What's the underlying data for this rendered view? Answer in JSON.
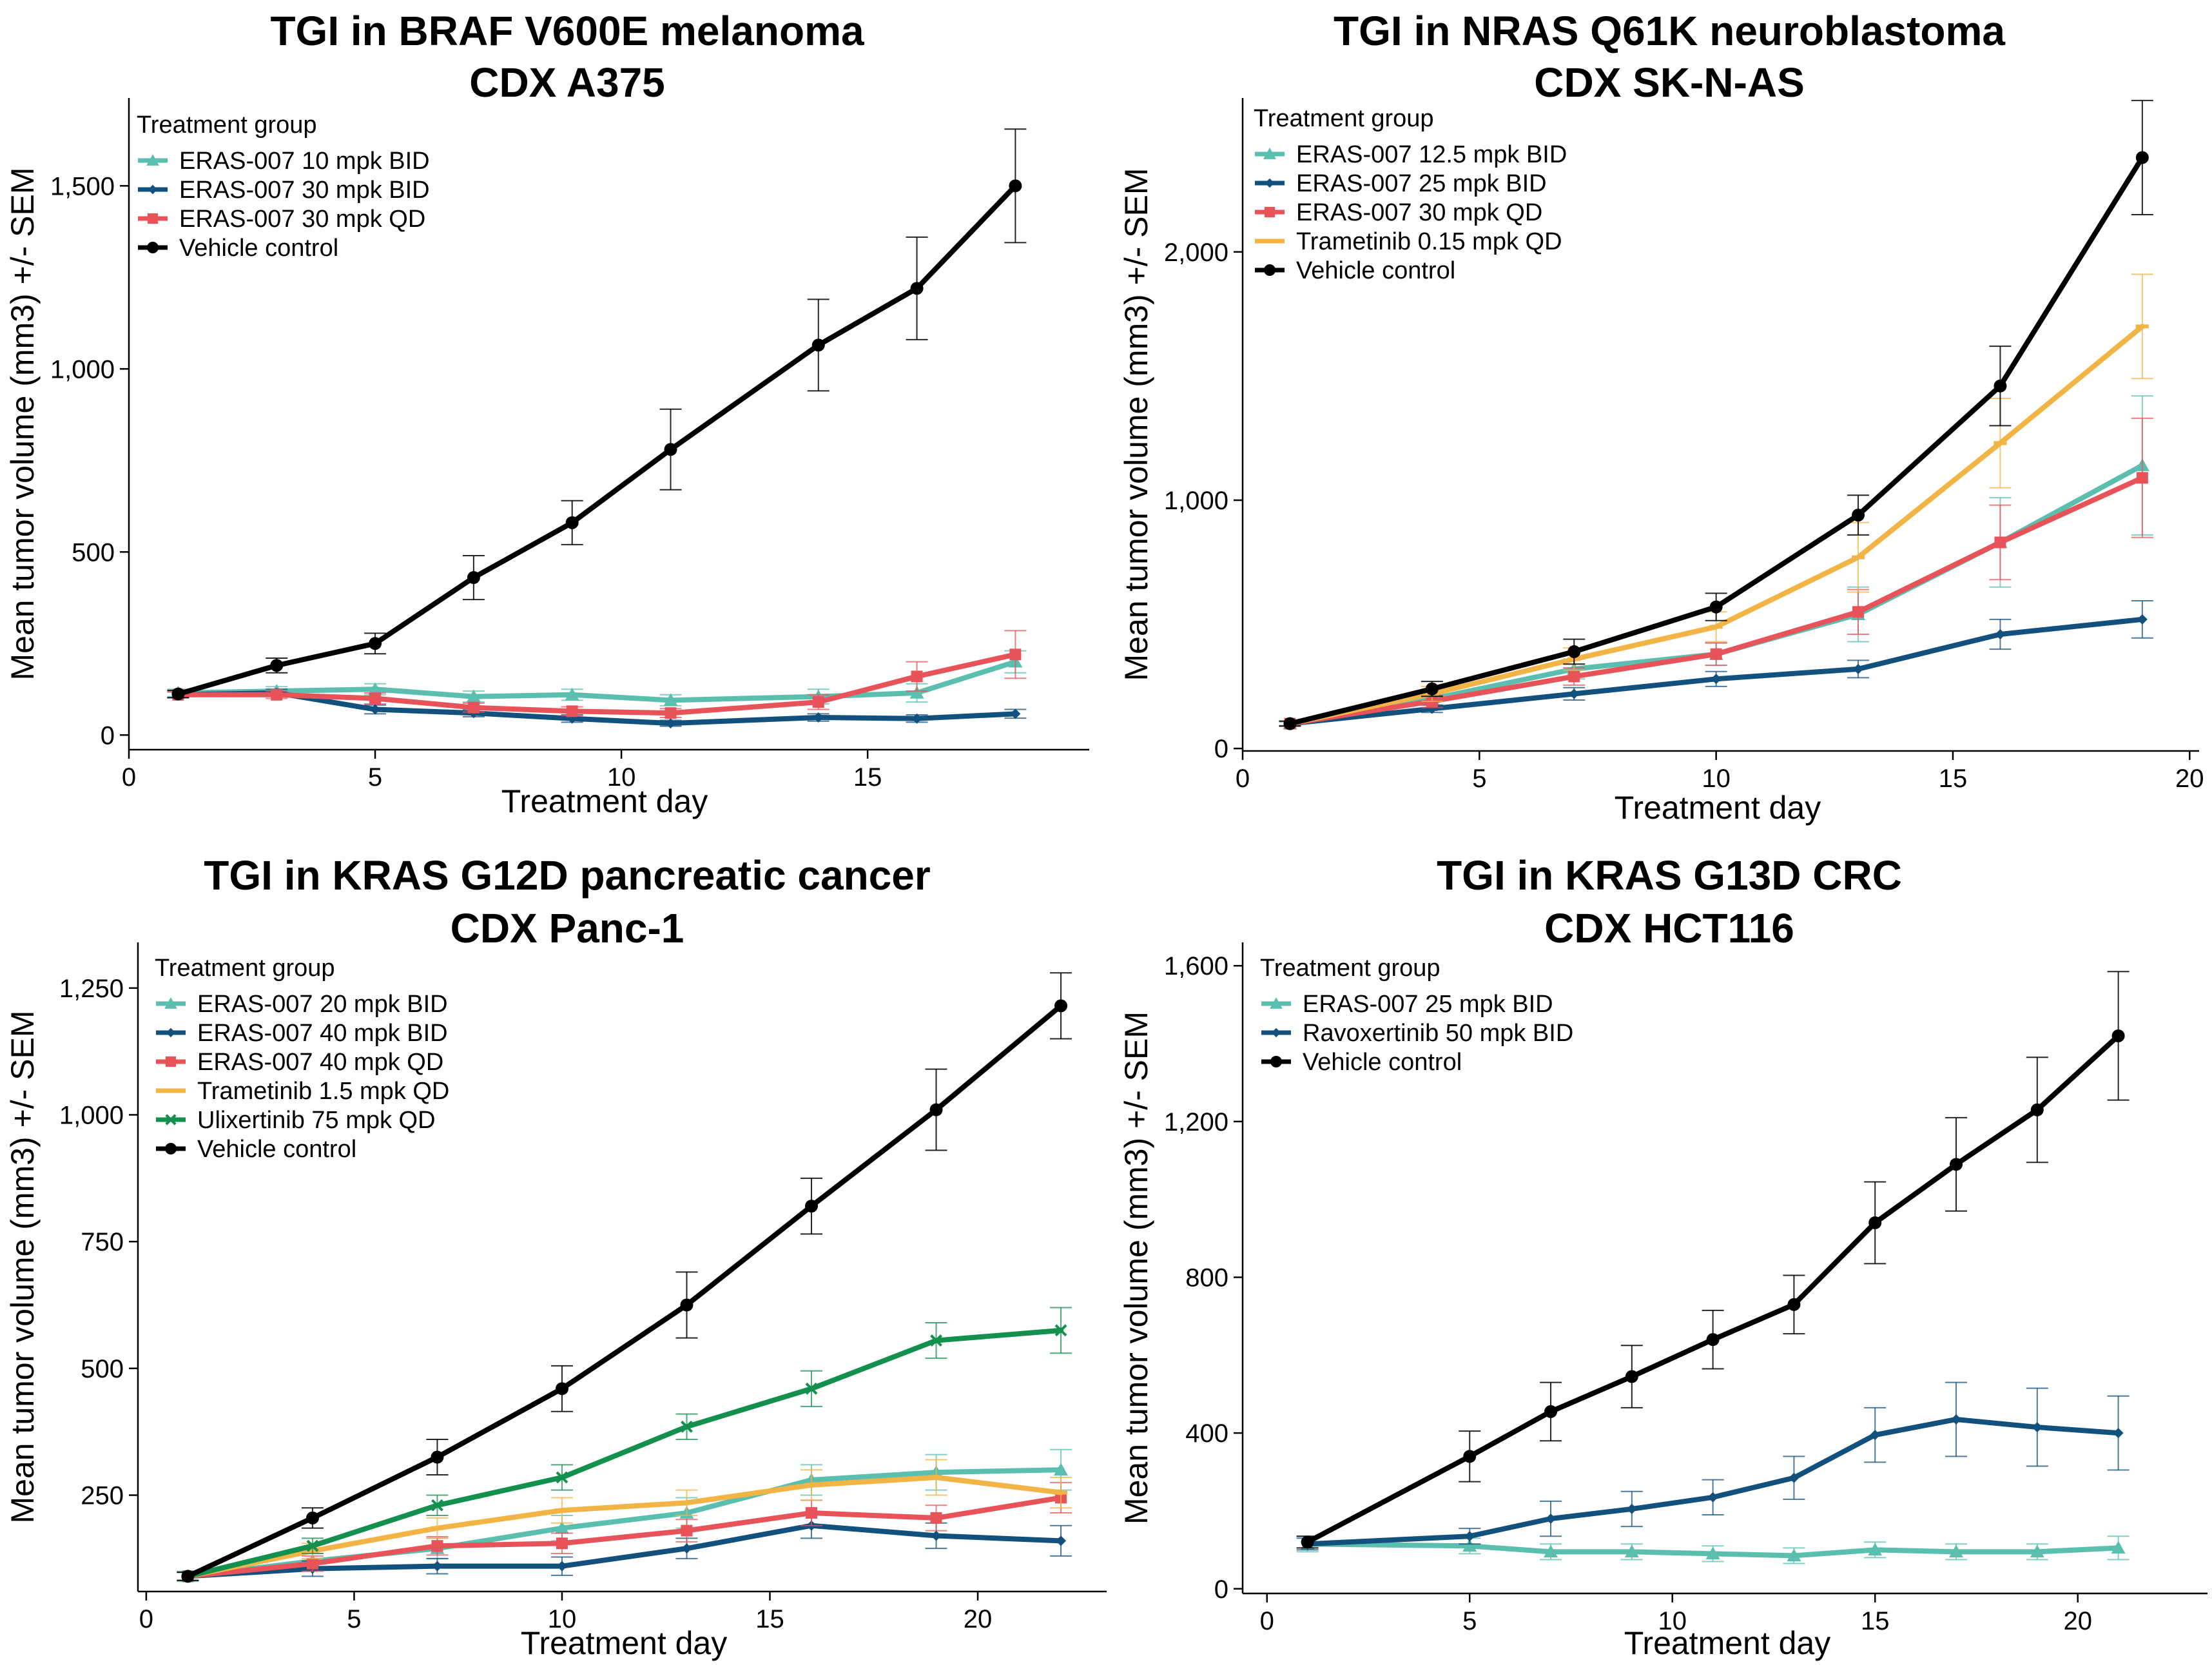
{
  "colors": {
    "teal": "#5bbfb0",
    "navy": "#12507e",
    "red": "#e8535a",
    "orange": "#f2b444",
    "green": "#13904d",
    "black": "#000000"
  },
  "chart_data": [
    {
      "type": "line",
      "title": "TGI in BRAF V600E melanoma",
      "subtitle": "CDX A375",
      "xlabel": "Treatment day",
      "ylabel": "Mean tumor volume (mm3) +/- SEM",
      "xlim": [
        0,
        19.5
      ],
      "ylim": [
        -40,
        1740
      ],
      "xticks": [
        0,
        5,
        10,
        15
      ],
      "xtick_labels": [
        "0",
        "5",
        "10",
        "15"
      ],
      "yticks": [
        0,
        500,
        1000,
        1500
      ],
      "ytick_labels": [
        "0",
        "500",
        "1,000",
        "1,500"
      ],
      "legend_title": "Treatment group",
      "legend_position": "top-left",
      "grid": false,
      "series": [
        {
          "name": "ERAS-007 10 mpk BID",
          "color": "#5bbfb0",
          "marker": "triangle",
          "x": [
            1,
            3,
            5,
            7,
            9,
            11,
            14,
            16,
            18
          ],
          "y": [
            115,
            120,
            125,
            105,
            110,
            95,
            105,
            115,
            200
          ],
          "err": [
            10,
            12,
            15,
            15,
            15,
            15,
            20,
            25,
            30
          ]
        },
        {
          "name": "ERAS-007 30 mpk BID",
          "color": "#12507e",
          "marker": "diamond",
          "x": [
            1,
            3,
            5,
            7,
            9,
            11,
            14,
            16,
            18
          ],
          "y": [
            110,
            115,
            70,
            60,
            45,
            32,
            48,
            45,
            58
          ],
          "err": [
            8,
            10,
            12,
            10,
            10,
            8,
            10,
            10,
            12
          ]
        },
        {
          "name": "ERAS-007 30 mpk QD",
          "color": "#e8535a",
          "marker": "square",
          "x": [
            1,
            3,
            5,
            7,
            9,
            11,
            14,
            16,
            18
          ],
          "y": [
            110,
            110,
            100,
            75,
            65,
            60,
            90,
            160,
            220
          ],
          "err": [
            8,
            10,
            15,
            12,
            12,
            12,
            20,
            40,
            65
          ]
        },
        {
          "name": "Vehicle control",
          "color": "#000000",
          "marker": "circle",
          "x": [
            1,
            3,
            5,
            7,
            9,
            11,
            14,
            16,
            18
          ],
          "y": [
            112,
            190,
            250,
            430,
            580,
            780,
            1065,
            1220,
            1500
          ],
          "err": [
            10,
            20,
            28,
            60,
            60,
            110,
            125,
            140,
            155
          ]
        }
      ]
    },
    {
      "type": "line",
      "title": "TGI in NRAS Q61K neuroblastoma",
      "subtitle": "CDX SK-N-AS",
      "xlabel": "Treatment day",
      "ylabel": "Mean tumor volume (mm3) +/- SEM",
      "xlim": [
        0,
        20.2
      ],
      "ylim": [
        -10,
        2620
      ],
      "xticks": [
        0,
        5,
        10,
        15,
        20
      ],
      "xtick_labels": [
        "0",
        "5",
        "10",
        "15",
        "20"
      ],
      "yticks": [
        0,
        1000,
        2000
      ],
      "ytick_labels": [
        "0",
        "1,000",
        "2,000"
      ],
      "legend_title": "Treatment group",
      "legend_position": "top-left",
      "grid": false,
      "series": [
        {
          "name": "ERAS-007 12.5 mpk BID",
          "color": "#5bbfb0",
          "marker": "triangle",
          "x": [
            1,
            4,
            7,
            10,
            13,
            16,
            19
          ],
          "y": [
            100,
            200,
            320,
            380,
            540,
            830,
            1140
          ],
          "err": [
            10,
            25,
            40,
            45,
            110,
            180,
            280
          ]
        },
        {
          "name": "ERAS-007 25 mpk BID",
          "color": "#12507e",
          "marker": "diamond",
          "x": [
            1,
            4,
            7,
            10,
            13,
            16,
            19
          ],
          "y": [
            100,
            160,
            220,
            280,
            320,
            460,
            520
          ],
          "err": [
            8,
            15,
            25,
            30,
            35,
            60,
            75
          ]
        },
        {
          "name": "ERAS-007 30 mpk QD",
          "color": "#e8535a",
          "marker": "square",
          "x": [
            1,
            4,
            7,
            10,
            13,
            16,
            19
          ],
          "y": [
            100,
            190,
            290,
            380,
            550,
            830,
            1090
          ],
          "err": [
            10,
            25,
            35,
            45,
            90,
            150,
            240
          ]
        },
        {
          "name": "Trametinib 0.15 mpk QD",
          "color": "#f2b444",
          "marker": "dash",
          "x": [
            1,
            4,
            7,
            10,
            13,
            16,
            19
          ],
          "y": [
            100,
            220,
            360,
            490,
            770,
            1230,
            1700
          ],
          "err": [
            10,
            30,
            45,
            60,
            140,
            180,
            210
          ]
        },
        {
          "name": "Vehicle control",
          "color": "#000000",
          "marker": "circle",
          "x": [
            1,
            4,
            7,
            10,
            13,
            16,
            19
          ],
          "y": [
            100,
            240,
            390,
            570,
            940,
            1460,
            2380
          ],
          "err": [
            10,
            30,
            50,
            55,
            80,
            160,
            230
          ]
        }
      ]
    },
    {
      "type": "line",
      "title": "TGI in KRAS G12D pancreatic cancer",
      "subtitle": "CDX Panc-1",
      "xlabel": "Treatment day",
      "ylabel": "Mean tumor volume (mm3) +/- SEM",
      "xlim": [
        -0.2,
        23.1
      ],
      "ylim": [
        60,
        1340
      ],
      "xticks": [
        0,
        5,
        10,
        15,
        20
      ],
      "xtick_labels": [
        "0",
        "5",
        "10",
        "15",
        "20"
      ],
      "yticks": [
        250,
        500,
        750,
        1000,
        1250
      ],
      "ytick_labels": [
        "250",
        "500",
        "750",
        "1,000",
        "1,250"
      ],
      "legend_title": "Treatment group",
      "legend_position": "top-left",
      "grid": false,
      "series": [
        {
          "name": "ERAS-007 20 mpk BID",
          "color": "#5bbfb0",
          "marker": "triangle",
          "x": [
            1,
            4,
            7,
            10,
            13,
            16,
            19,
            22
          ],
          "y": [
            90,
            120,
            145,
            185,
            215,
            280,
            295,
            300
          ],
          "err": [
            10,
            15,
            20,
            25,
            30,
            30,
            35,
            40
          ]
        },
        {
          "name": "ERAS-007 40 mpk BID",
          "color": "#12507e",
          "marker": "diamond",
          "x": [
            1,
            4,
            7,
            10,
            13,
            16,
            19,
            22
          ],
          "y": [
            90,
            105,
            110,
            110,
            145,
            190,
            170,
            160
          ],
          "err": [
            8,
            15,
            15,
            18,
            20,
            25,
            25,
            30
          ]
        },
        {
          "name": "ERAS-007 40 mpk QD",
          "color": "#e8535a",
          "marker": "square",
          "x": [
            1,
            4,
            7,
            10,
            13,
            16,
            19,
            22
          ],
          "y": [
            90,
            115,
            150,
            155,
            180,
            215,
            205,
            245
          ],
          "err": [
            8,
            15,
            18,
            20,
            22,
            25,
            25,
            30
          ]
        },
        {
          "name": "Trametinib 1.5 mpk QD",
          "color": "#f2b444",
          "marker": "dash",
          "x": [
            1,
            4,
            7,
            10,
            13,
            16,
            19,
            22
          ],
          "y": [
            90,
            140,
            185,
            220,
            235,
            270,
            285,
            255
          ],
          "err": [
            8,
            15,
            20,
            25,
            25,
            30,
            35,
            30
          ]
        },
        {
          "name": "Ulixertinib 75 mpk QD",
          "color": "#13904d",
          "marker": "cross",
          "x": [
            1,
            4,
            7,
            10,
            13,
            16,
            19,
            22
          ],
          "y": [
            90,
            150,
            230,
            285,
            385,
            460,
            555,
            575
          ],
          "err": [
            8,
            15,
            20,
            25,
            25,
            35,
            35,
            45
          ]
        },
        {
          "name": "Vehicle control",
          "color": "#000000",
          "marker": "circle",
          "x": [
            1,
            4,
            7,
            10,
            13,
            16,
            19,
            22
          ],
          "y": [
            90,
            205,
            325,
            460,
            625,
            820,
            1010,
            1215
          ],
          "err": [
            8,
            20,
            35,
            45,
            65,
            55,
            80,
            65
          ]
        }
      ]
    },
    {
      "type": "line",
      "title": "TGI in KRAS G13D CRC",
      "subtitle": "CDX HCT116",
      "xlabel": "Treatment day",
      "ylabel": "Mean tumor volume (mm3) +/- SEM",
      "xlim": [
        -0.6,
        23.2
      ],
      "ylim": [
        -12,
        1660
      ],
      "xticks": [
        0,
        5,
        10,
        15,
        20
      ],
      "xtick_labels": [
        "0",
        "5",
        "10",
        "15",
        "20"
      ],
      "yticks": [
        0,
        400,
        800,
        1200,
        1600
      ],
      "ytick_labels": [
        "0",
        "400",
        "800",
        "1,200",
        "1,600"
      ],
      "legend_title": "Treatment group",
      "legend_position": "top-left",
      "grid": false,
      "series": [
        {
          "name": "ERAS-007 25 mpk BID",
          "color": "#5bbfb0",
          "marker": "triangle",
          "x": [
            1,
            5,
            7,
            9,
            11,
            13,
            15,
            17,
            19,
            21
          ],
          "y": [
            115,
            110,
            95,
            95,
            90,
            85,
            100,
            95,
            95,
            105
          ],
          "err": [
            20,
            20,
            20,
            20,
            20,
            20,
            20,
            20,
            20,
            30
          ]
        },
        {
          "name": "Ravoxertinib 50 mpk BID",
          "color": "#12507e",
          "marker": "diamond",
          "x": [
            1,
            5,
            7,
            9,
            11,
            13,
            15,
            17,
            19,
            21
          ],
          "y": [
            115,
            135,
            180,
            205,
            235,
            285,
            395,
            435,
            415,
            400
          ],
          "err": [
            15,
            20,
            45,
            45,
            45,
            55,
            70,
            95,
            100,
            95
          ]
        },
        {
          "name": "Vehicle control",
          "color": "#000000",
          "marker": "circle",
          "x": [
            1,
            5,
            7,
            9,
            11,
            13,
            15,
            17,
            19,
            21
          ],
          "y": [
            120,
            340,
            455,
            545,
            640,
            730,
            940,
            1090,
            1230,
            1420
          ],
          "err": [
            15,
            65,
            75,
            80,
            75,
            75,
            105,
            120,
            135,
            165
          ]
        }
      ]
    }
  ]
}
